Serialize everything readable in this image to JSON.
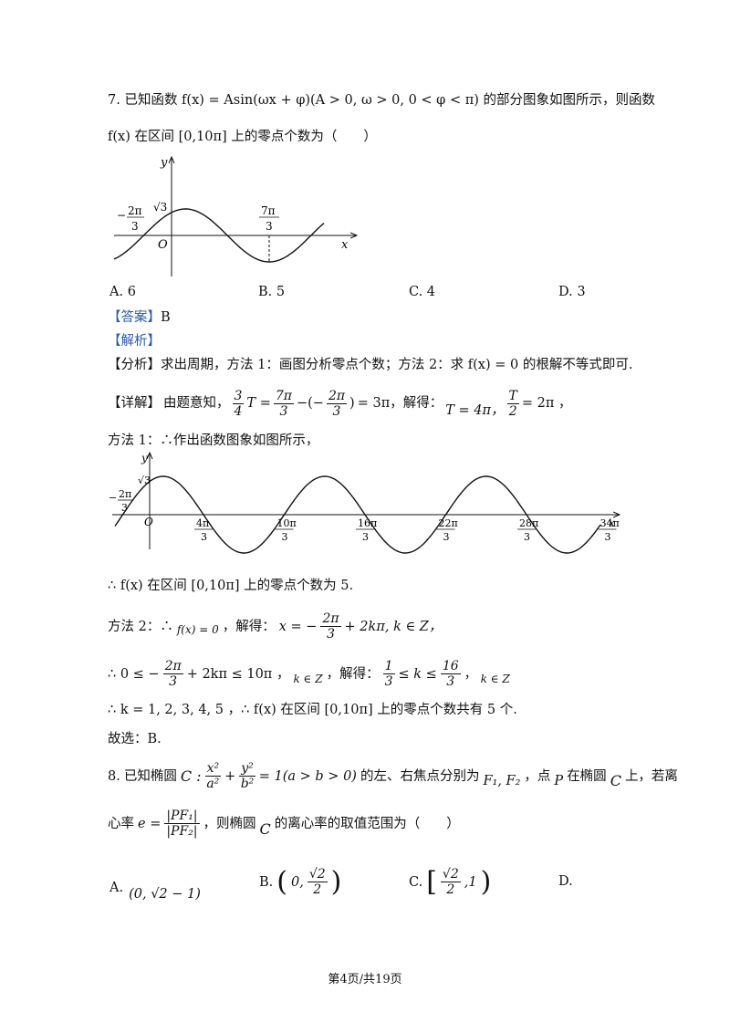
{
  "q7": {
    "number": "7.",
    "line1": "已知函数 f(x) = Asin(ωx + φ)(A > 0, ω > 0, 0 < φ < π) 的部分图象如图所示，则函数",
    "line2": "f(x) 在区间 [0,10π] 上的零点个数为（　　）",
    "options": [
      "A. 6",
      "B. 5",
      "C. 4",
      "D. 3"
    ],
    "answer_tag": "【答案】",
    "answer_value": "B",
    "analysis_tag": "【解析】",
    "fenxi_tag": "【分析】",
    "fenxi_text": "求出周期，方法 1：画图分析零点个数；方法 2：求 f(x) = 0 的根解不等式即可.",
    "xiangjie_tag": "【详解】",
    "xiangjie_pre": "由题意知，",
    "xiangjie_eq_mid": "T = ",
    "xiangjie_eq_rest": " = 3π，解得：",
    "xiangjie_t": "T = 4π，",
    "xiangjie_half": " = 2π ，",
    "method1": "方法 1：∴作出函数图象如图所示，",
    "conclusion1": "∴ f(x) 在区间 [0,10π] 上的零点个数为 5.",
    "method2_pre": "方法 2：∴",
    "method2_fx": "f(x) = 0",
    "method2_post": "，解得：",
    "method2_x": "x = −",
    "method2_x_rest": " + 2kπ, k ∈ Z，",
    "ineq_pre": "∴ 0 ≤ −",
    "ineq_mid": " + 2kπ ≤ 10π ，",
    "ineq_kz": "k ∈ Z",
    "ineq_solve": "，解得：",
    "ineq_k": " ≤ k ≤ ",
    "ineq_kz2": "k ∈ Z",
    "k_values": "∴ k = 1, 2, 3, 4, 5 ，∴ f(x) 在区间 [0,10π] 上的零点个数共有 5 个.",
    "choose": "故选：B."
  },
  "fractions": {
    "three": "3",
    "four": "4",
    "two": "2",
    "one": "1",
    "seven_pi": "7π",
    "two_pi": "2π",
    "sixteen": "16",
    "T": "T"
  },
  "graph1": {
    "y_label": "y",
    "x_label": "x",
    "origin": "O",
    "sqrt3": "√3",
    "left_num": "2π",
    "left_den": "3",
    "left_sign": "−",
    "right_num": "7π",
    "right_den": "3"
  },
  "graph2": {
    "y_label": "y",
    "x_label": "x",
    "origin": "O",
    "sqrt3": "√3",
    "left_num": "2π",
    "left_den": "3",
    "left_sign": "−",
    "ticks": [
      {
        "num": "4π",
        "den": "3"
      },
      {
        "num": "10π",
        "den": "3"
      },
      {
        "num": "16π",
        "den": "3"
      },
      {
        "num": "22π",
        "den": "3"
      },
      {
        "num": "28π",
        "den": "3"
      },
      {
        "num": "34π",
        "den": "3"
      }
    ]
  },
  "q8": {
    "number": "8.",
    "line1_a": "已知椭圆",
    "ellipse_c": "C :",
    "ellipse_eq_tail": "= 1(a > b > 0)",
    "line1_b": "的左、右焦点分别为",
    "foci": "F₁, F₂",
    "line1_c": "，点",
    "point_p": "P",
    "line1_d": "在椭圆",
    "curve_c": "C",
    "line1_e": "上，若离",
    "line2_a": "心率",
    "e_eq": "e =",
    "pf1": "|PF₁|",
    "pf2": "|PF₂|",
    "line2_b": "，则椭圆",
    "line2_c": "的离心率的取值范围为（　　）",
    "x2": "x²",
    "a2": "a²",
    "y2": "y²",
    "b2": "b²",
    "options": [
      {
        "label": "A.",
        "value": "(0, √2 − 1)"
      },
      {
        "label": "B.",
        "value": "(0, √2/2)"
      },
      {
        "label": "C.",
        "value": "[√2/2, 1)"
      },
      {
        "label": "D.",
        "value": ""
      }
    ],
    "optB_a": "0,",
    "optB_num": "√2",
    "optB_den": "2",
    "optC_num": "√2",
    "optC_den": "2",
    "optC_b": ",1"
  },
  "footer": "第4页/共19页"
}
